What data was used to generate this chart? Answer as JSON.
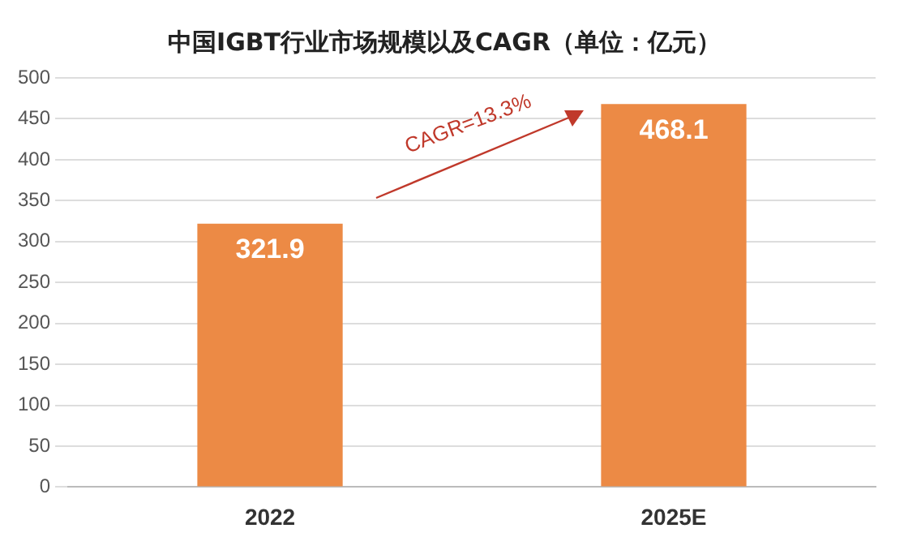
{
  "chart_data": {
    "type": "bar",
    "title": "中国IGBT行业市场规模以及CAGR（单位：亿元）",
    "categories": [
      "2022",
      "2025E"
    ],
    "values": [
      321.9,
      468.1
    ],
    "color": "#ec8a45",
    "ylim": [
      0,
      500
    ],
    "yticks": [
      0,
      50,
      100,
      150,
      200,
      250,
      300,
      350,
      400,
      450,
      500
    ],
    "grid": "y",
    "data_labels": true,
    "legend": false,
    "annotations": [
      "CAGR=13.3%"
    ]
  }
}
